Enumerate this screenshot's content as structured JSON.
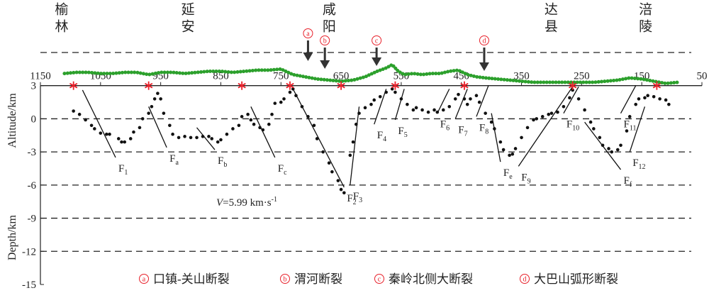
{
  "chart_data": {
    "type": "profile",
    "cities": [
      {
        "name": "榆林",
        "x": 1117
      },
      {
        "name": "延安",
        "x": 907
      },
      {
        "name": "咸阳",
        "x": 672
      },
      {
        "name": "达县",
        "x": 303
      },
      {
        "name": "涪陵",
        "x": 146
      }
    ],
    "xlim": [
      1150,
      50
    ],
    "xticks": [
      1150,
      1050,
      950,
      850,
      750,
      650,
      550,
      450,
      350,
      250,
      150,
      50
    ],
    "ylim": [
      -15,
      6
    ],
    "yticks": [
      3,
      0,
      -3,
      -6,
      -9,
      -12,
      -15
    ],
    "grid_lines": [
      6,
      0,
      -3,
      -6,
      -9,
      -12
    ],
    "y_label_top": "Altitude/km",
    "y_label_bottom": "Depth/km",
    "topography": {
      "color": "#2ca02c",
      "x": [
        1110,
        1090,
        1070,
        1050,
        1030,
        1010,
        990,
        970,
        950,
        930,
        910,
        890,
        870,
        850,
        830,
        810,
        790,
        770,
        750,
        730,
        710,
        690,
        670,
        650,
        630,
        610,
        590,
        575,
        565,
        555,
        545,
        530,
        515,
        500,
        485,
        470,
        455,
        440,
        425,
        410,
        390,
        370,
        350,
        330,
        310,
        290,
        270,
        250,
        230,
        210,
        190,
        170,
        150,
        130,
        110,
        90
      ],
      "y": [
        4.1,
        4.2,
        4.2,
        4.1,
        4.1,
        4.2,
        4.2,
        4.0,
        4.2,
        4.2,
        4.1,
        4.2,
        4.3,
        4.3,
        4.2,
        4.3,
        4.4,
        4.4,
        4.5,
        4.0,
        3.8,
        3.6,
        3.5,
        3.4,
        3.5,
        3.8,
        4.3,
        4.6,
        4.9,
        4.3,
        4.0,
        4.1,
        4.0,
        4.1,
        4.1,
        4.3,
        4.4,
        4.0,
        3.8,
        3.7,
        3.6,
        3.5,
        3.4,
        3.3,
        3.3,
        3.3,
        3.3,
        3.3,
        3.3,
        3.4,
        3.5,
        3.7,
        3.6,
        3.4,
        3.2,
        3.3
      ]
    },
    "stations": {
      "color": "#e8202a",
      "x": [
        1095,
        970,
        815,
        735,
        650,
        560,
        445,
        265,
        125
      ]
    },
    "profile": {
      "color": "#111111",
      "x": [
        1095,
        1085,
        1075,
        1065,
        1060,
        1050,
        1040,
        1035,
        1020,
        1015,
        1010,
        1000,
        995,
        985,
        980,
        970,
        965,
        960,
        955,
        950,
        945,
        935,
        930,
        920,
        910,
        900,
        890,
        880,
        870,
        865,
        855,
        850,
        840,
        830,
        820,
        815,
        805,
        800,
        795,
        785,
        780,
        770,
        765,
        760,
        750,
        745,
        735,
        730,
        725,
        715,
        705,
        695,
        690,
        680,
        670,
        665,
        655,
        650,
        645,
        635,
        630,
        625,
        620,
        610,
        600,
        595,
        585,
        575,
        565,
        560,
        550,
        540,
        530,
        525,
        515,
        505,
        495,
        490,
        480,
        470,
        460,
        455,
        445,
        440,
        435,
        425,
        420,
        410,
        400,
        395,
        385,
        380,
        370,
        365,
        360,
        350,
        340,
        330,
        325,
        315,
        305,
        300,
        290,
        280,
        270,
        265,
        255,
        245,
        235,
        230,
        220,
        215,
        205,
        200,
        190,
        185,
        175,
        170,
        160,
        155,
        145,
        140,
        130,
        120,
        110,
        105
      ],
      "y": [
        0.7,
        0.4,
        -0.1,
        -0.6,
        -0.9,
        -1.3,
        -1.4,
        -1.4,
        -1.8,
        -2.1,
        -2.1,
        -1.8,
        -1.2,
        -0.8,
        0,
        0.5,
        1.1,
        1.8,
        2.3,
        1.8,
        0.5,
        -0.6,
        -1.4,
        -1.7,
        -1.6,
        -1.7,
        -1.7,
        -1.6,
        -1.6,
        -1.8,
        -2.1,
        -1.9,
        -1.4,
        -0.9,
        -0.6,
        0.2,
        0.4,
        -0.1,
        -0.5,
        -0.8,
        -1.0,
        -0.5,
        0.4,
        1.4,
        1.5,
        1.8,
        2.4,
        2.7,
        2.1,
        1.1,
        0.2,
        -0.6,
        -1.8,
        -3.0,
        -4.0,
        -4.8,
        -5.6,
        -6.4,
        -6.7,
        -3.3,
        -2.1,
        -0.5,
        0.5,
        1.0,
        1.3,
        1.7,
        2.0,
        2.4,
        2.7,
        2.4,
        1.8,
        1.3,
        0.8,
        1.0,
        0.8,
        0.6,
        0.8,
        0.6,
        0.8,
        1.1,
        1.8,
        2.2,
        1.8,
        1.3,
        1.8,
        2.1,
        1.5,
        0.5,
        -0.3,
        -0.9,
        -2.1,
        -2.8,
        -3.3,
        -3.2,
        -2.7,
        -1.7,
        -0.8,
        -0.1,
        0,
        0.2,
        0.4,
        0.5,
        0.6,
        1.1,
        1.9,
        2.6,
        1.8,
        0.8,
        -0.3,
        -0.9,
        -1.7,
        -2.4,
        -2.7,
        -3.0,
        -2.8,
        -2.4,
        -1.1,
        0.2,
        1.3,
        1.8,
        1.9,
        2.1,
        2.0,
        1.8,
        1.7,
        1.3
      ]
    },
    "faults": [
      {
        "label": "F",
        "sub": "1",
        "x": [
          1080,
          1025
        ],
        "y": [
          2.6,
          -3.5
        ]
      },
      {
        "label": "F",
        "sub": "a",
        "x": [
          970,
          940
        ],
        "y": [
          1.1,
          -2.6
        ]
      },
      {
        "label": "F",
        "sub": "b",
        "x": [
          890,
          860
        ],
        "y": [
          -0.8,
          -2.8
        ]
      },
      {
        "label": "F",
        "sub": "c",
        "x": [
          800,
          760
        ],
        "y": [
          1.1,
          -3.5
        ]
      },
      {
        "label": "F",
        "sub": "2",
        "x": [
          730,
          645
        ],
        "y": [
          2.7,
          -6.2
        ]
      },
      {
        "label": "F",
        "sub": "3",
        "x": [
          620,
          635
        ],
        "y": [
          1.1,
          -6.0
        ]
      },
      {
        "label": "F",
        "sub": "4",
        "x": [
          575,
          595
        ],
        "y": [
          2.7,
          -0.5
        ]
      },
      {
        "label": "F",
        "sub": "5",
        "x": [
          545,
          560
        ],
        "y": [
          2.7,
          -0.1
        ]
      },
      {
        "label": "F",
        "sub": "6",
        "x": [
          470,
          490
        ],
        "y": [
          2.7,
          0.5
        ]
      },
      {
        "label": "F",
        "sub": "7",
        "x": [
          440,
          460
        ],
        "y": [
          2.7,
          0
        ]
      },
      {
        "label": "F",
        "sub": "8",
        "x": [
          405,
          425
        ],
        "y": [
          3.0,
          0.2
        ]
      },
      {
        "label": "F",
        "sub": "e",
        "x": [
          400,
          385
        ],
        "y": [
          0.5,
          -3.9
        ]
      },
      {
        "label": "F",
        "sub": "9",
        "x": [
          265,
          355
        ],
        "y": [
          2.9,
          -4.3
        ]
      },
      {
        "label": "F",
        "sub": "10",
        "x": [
          255,
          280
        ],
        "y": [
          2.9,
          0.5
        ]
      },
      {
        "label": "F",
        "sub": "11",
        "x": [
          160,
          185
        ],
        "y": [
          3.0,
          0.5
        ]
      },
      {
        "label": "F",
        "sub": "f",
        "x": [
          245,
          185
        ],
        "y": [
          -0.3,
          -4.6
        ]
      },
      {
        "label": "F",
        "sub": "12",
        "x": [
          145,
          170
        ],
        "y": [
          1.1,
          -3.0
        ]
      }
    ],
    "markers": [
      {
        "letter": "a",
        "x": 705
      },
      {
        "letter": "b",
        "x": 677
      },
      {
        "letter": "c",
        "x": 591
      },
      {
        "letter": "d",
        "x": 412
      }
    ],
    "legend": [
      "口镇-关山断裂",
      "渭河断裂",
      "秦岭北侧大断裂",
      "大巴山弧形断裂"
    ],
    "annotation": {
      "variable": "V",
      "text": "=5.99 km·s",
      "sup": "-1"
    }
  }
}
